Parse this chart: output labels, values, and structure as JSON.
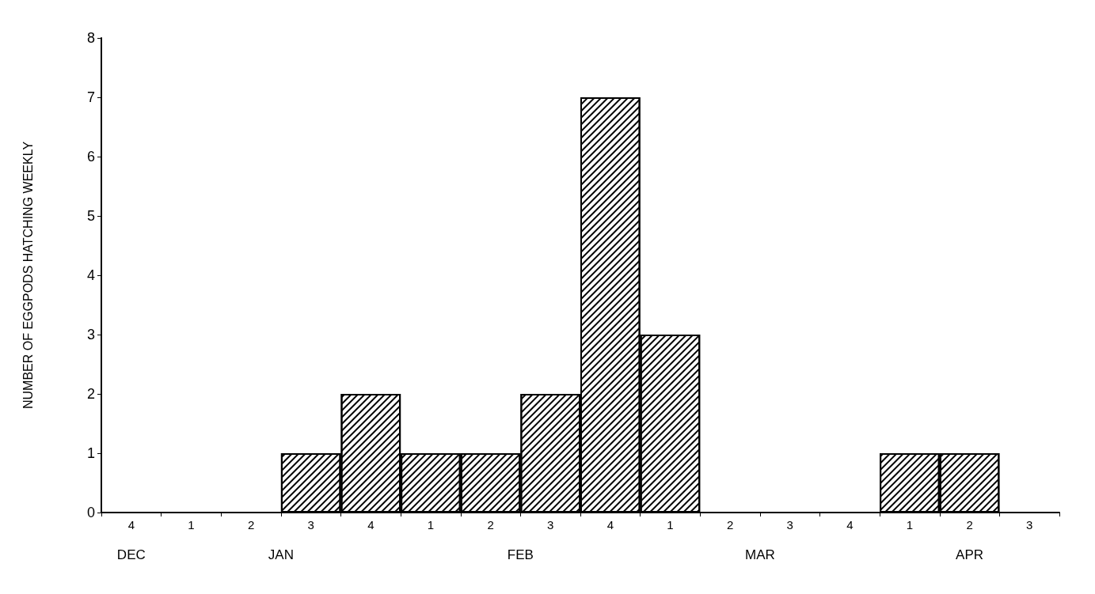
{
  "chart_data": {
    "type": "bar",
    "ylabel": "NUMBER OF EGGPODS HATCHING WEEKLY",
    "categories": [
      "4",
      "1",
      "2",
      "3",
      "4",
      "1",
      "2",
      "3",
      "4",
      "1",
      "2",
      "3",
      "4",
      "1",
      "2",
      "3"
    ],
    "values": [
      0,
      0,
      0,
      1,
      2,
      1,
      1,
      2,
      7,
      3,
      0,
      0,
      0,
      1,
      1,
      0
    ],
    "color": "#ffffff",
    "ylim": [
      0,
      8
    ],
    "yticks": [
      0,
      1,
      2,
      3,
      4,
      5,
      6,
      7,
      8
    ],
    "annotations": [
      "DEC",
      "JAN",
      "FEB",
      "MAR",
      "APR"
    ],
    "grid": false
  }
}
